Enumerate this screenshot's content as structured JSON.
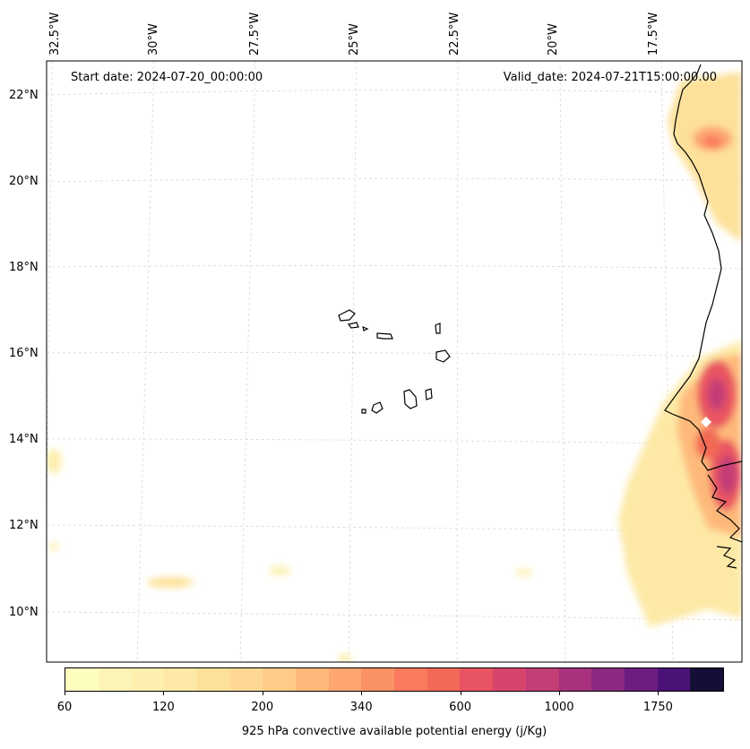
{
  "header": {
    "start_date": "Start date: 2024-07-20_00:00:00",
    "valid_date": "Valid_date: 2024-07-21T15:00:00.00"
  },
  "lat_labels": [
    "22°N",
    "20°N",
    "18°N",
    "16°N",
    "14°N",
    "12°N",
    "10°N"
  ],
  "lon_labels": [
    "32.5°W",
    "30°W",
    "27.5°W",
    "25°W",
    "22.5°W",
    "20°W",
    "17.5°W"
  ],
  "colorbar": {
    "label": "925 hPa convective available potential energy (j/Kg)",
    "ticks": [
      "60",
      "120",
      "200",
      "340",
      "600",
      "1000",
      "1750"
    ],
    "colors": [
      "#fcfdbf",
      "#fcf4b6",
      "#fdefae",
      "#fde9a5",
      "#fde19a",
      "#fed892",
      "#fecc87",
      "#feb97a",
      "#fda66f",
      "#fb9265",
      "#f97a5c",
      "#f26957",
      "#e95462",
      "#d8456c",
      "#c33d77",
      "#a8327d",
      "#8b2981",
      "#6c1e80",
      "#4a1277",
      "#150e37"
    ],
    "tick_positions": [
      0,
      3,
      6,
      9,
      12,
      15,
      18
    ]
  },
  "marker": {
    "shape": "diamond",
    "color": "#ffffff"
  }
}
